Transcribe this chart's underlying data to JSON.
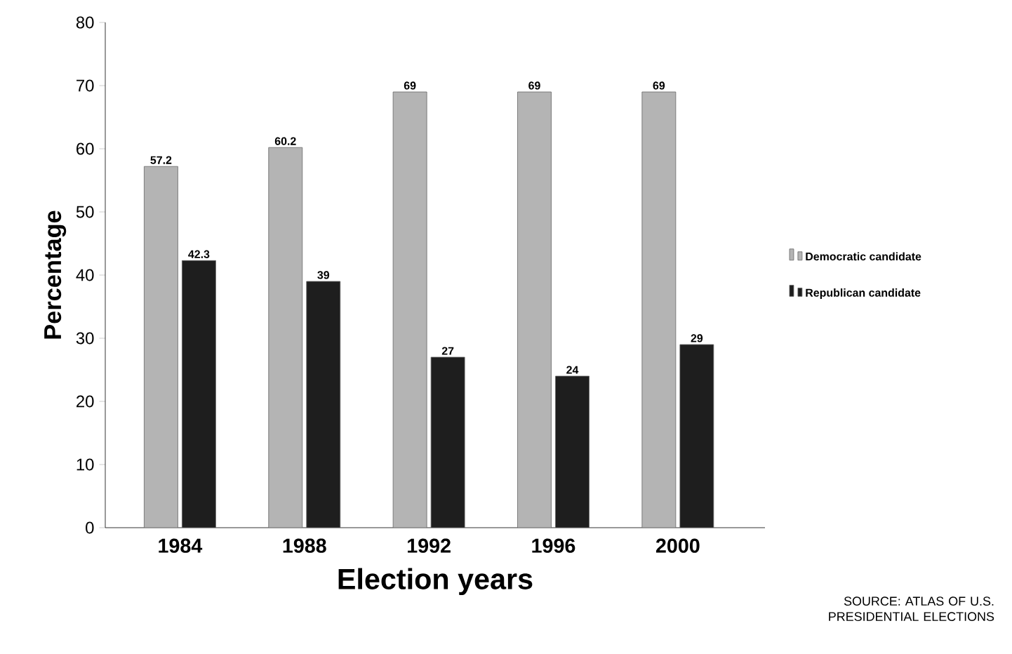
{
  "chart_data": {
    "type": "bar",
    "xlabel": "Election years",
    "ylabel": "Percentage",
    "categories": [
      "1984",
      "1988",
      "1992",
      "1996",
      "2000"
    ],
    "series": [
      {
        "name": "Democratic candidate",
        "color": "#b4b4b4",
        "values": [
          57.2,
          60.2,
          69,
          69,
          69
        ]
      },
      {
        "name": "Republican candidate",
        "color": "#1e1e1e",
        "values": [
          42.3,
          39,
          27,
          24,
          29
        ]
      }
    ],
    "ylim": [
      0,
      80
    ],
    "yticks": [
      0,
      10,
      20,
      30,
      40,
      50,
      60,
      70,
      80
    ],
    "data_labels": true,
    "grid": false,
    "legend": "right",
    "annotations": [
      "SOURCE: ATLAS OF U.S. PRESIDENTIAL ELECTIONS"
    ]
  }
}
